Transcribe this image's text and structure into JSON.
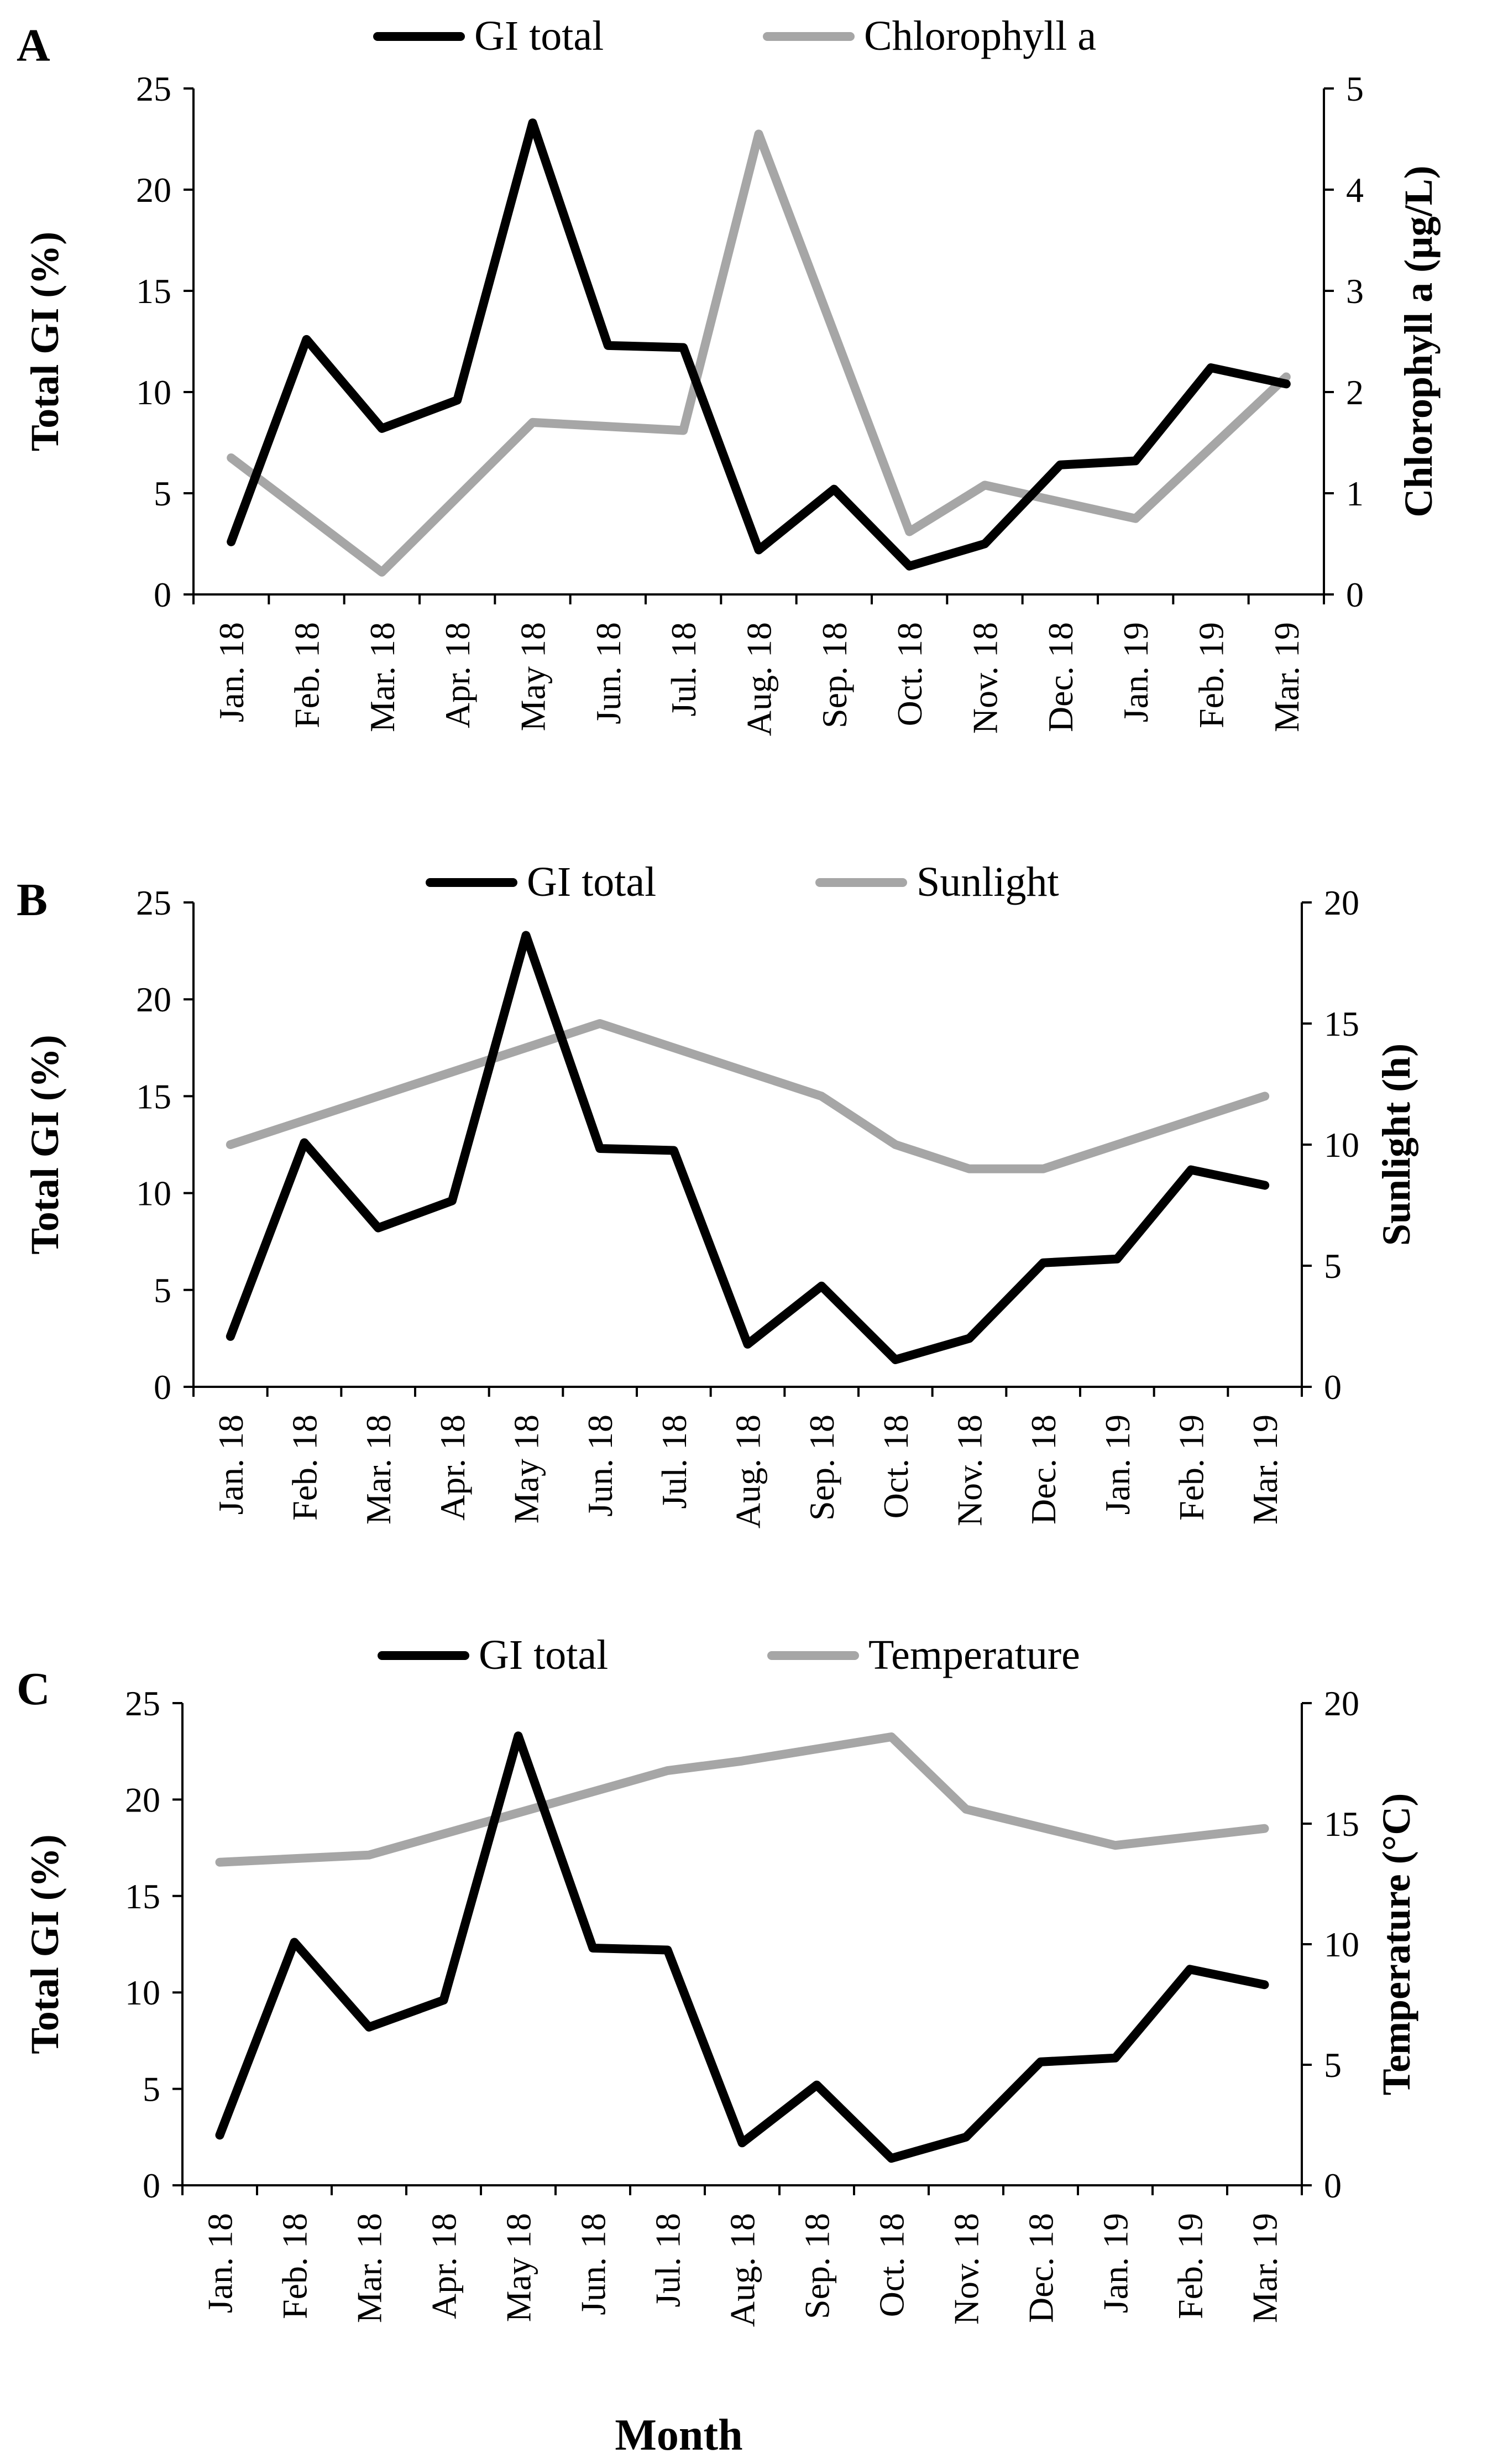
{
  "figure": {
    "xlabel": "Month"
  },
  "chart_data": [
    {
      "type": "line",
      "panel": "A",
      "categories": [
        "Jan. 18",
        "Feb. 18",
        "Mar. 18",
        "Apr. 18",
        "May 18",
        "Jun. 18",
        "Jul. 18",
        "Aug. 18",
        "Sep. 18",
        "Oct. 18",
        "Nov. 18",
        "Dec. 18",
        "Jan. 19",
        "Feb. 19",
        "Mar. 19"
      ],
      "ylabel": "Total GI (%)",
      "y2label": "Chlorophyll a (µg/L)",
      "ylim": [
        0,
        25
      ],
      "yticks": [
        "0",
        "5",
        "10",
        "15",
        "20",
        "25"
      ],
      "y2lim": [
        0,
        5
      ],
      "y2ticks": [
        "0",
        "1",
        "2",
        "3",
        "4",
        "5"
      ],
      "legend_position": "top-center",
      "series": [
        {
          "name": "GI total",
          "axis": "left",
          "color": "#000000",
          "values": [
            2.6,
            12.6,
            8.2,
            9.6,
            23.3,
            12.3,
            12.2,
            2.2,
            5.2,
            1.4,
            2.5,
            6.4,
            6.6,
            11.2,
            10.4
          ]
        },
        {
          "name": "Chlorophyll a",
          "axis": "right",
          "color": "#a6a6a6",
          "values": [
            1.35,
            null,
            0.22,
            null,
            1.7,
            null,
            1.62,
            4.55,
            null,
            0.62,
            1.08,
            null,
            0.75,
            null,
            2.15
          ]
        }
      ]
    },
    {
      "type": "line",
      "panel": "B",
      "categories": [
        "Jan. 18",
        "Feb. 18",
        "Mar. 18",
        "Apr. 18",
        "May 18",
        "Jun. 18",
        "Jul. 18",
        "Aug. 18",
        "Sep. 18",
        "Oct. 18",
        "Nov. 18",
        "Dec. 18",
        "Jan. 19",
        "Feb. 19",
        "Mar. 19"
      ],
      "ylabel": "Total GI (%)",
      "y2label": "Sunlight (h)",
      "ylim": [
        0,
        25
      ],
      "yticks": [
        "0",
        "5",
        "10",
        "15",
        "20",
        "25"
      ],
      "y2lim": [
        0,
        20
      ],
      "y2ticks": [
        "0",
        "5",
        "10",
        "15",
        "20"
      ],
      "legend_position": "top-center",
      "series": [
        {
          "name": "GI total",
          "axis": "left",
          "color": "#000000",
          "values": [
            2.6,
            12.6,
            8.2,
            9.6,
            23.3,
            12.3,
            12.2,
            2.2,
            5.2,
            1.4,
            2.5,
            6.4,
            6.6,
            11.2,
            10.4
          ]
        },
        {
          "name": "Sunlight",
          "axis": "right",
          "color": "#a6a6a6",
          "values": [
            10,
            null,
            null,
            null,
            null,
            15,
            null,
            null,
            12,
            10,
            9,
            9,
            null,
            null,
            12
          ]
        }
      ]
    },
    {
      "type": "line",
      "panel": "C",
      "categories": [
        "Jan. 18",
        "Feb. 18",
        "Mar. 18",
        "Apr. 18",
        "May 18",
        "Jun. 18",
        "Jul. 18",
        "Aug. 18",
        "Sep. 18",
        "Oct. 18",
        "Nov. 18",
        "Dec. 18",
        "Jan. 19",
        "Feb. 19",
        "Mar. 19"
      ],
      "ylabel": "Total GI (%)",
      "y2label": "Temperature (°C)",
      "ylim": [
        0,
        25
      ],
      "yticks": [
        "0",
        "5",
        "10",
        "15",
        "20",
        "25"
      ],
      "y2lim": [
        0,
        20
      ],
      "y2ticks": [
        "0",
        "5",
        "10",
        "15",
        "20"
      ],
      "legend_position": "top-center",
      "series": [
        {
          "name": "GI total",
          "axis": "left",
          "color": "#000000",
          "values": [
            2.6,
            12.6,
            8.2,
            9.6,
            23.3,
            12.3,
            12.2,
            2.2,
            5.2,
            1.4,
            2.5,
            6.4,
            6.6,
            11.2,
            10.4
          ]
        },
        {
          "name": "Temperature",
          "axis": "right",
          "color": "#a6a6a6",
          "values": [
            13.4,
            null,
            13.7,
            null,
            null,
            null,
            17.2,
            17.6,
            null,
            18.6,
            15.6,
            null,
            14.1,
            null,
            14.8
          ]
        }
      ]
    }
  ]
}
